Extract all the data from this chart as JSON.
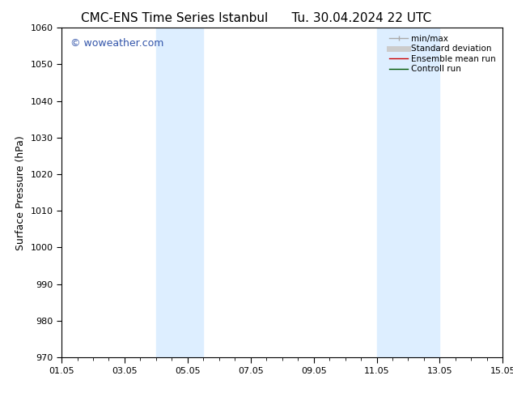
{
  "title_left": "CMC-ENS Time Series Istanbul",
  "title_right": "Tu. 30.04.2024 22 UTC",
  "ylabel": "Surface Pressure (hPa)",
  "ylim": [
    970,
    1060
  ],
  "yticks": [
    970,
    980,
    990,
    1000,
    1010,
    1020,
    1030,
    1040,
    1050,
    1060
  ],
  "xstart_day": 1,
  "xend_day": 15,
  "xtick_days": [
    1,
    3,
    5,
    7,
    9,
    11,
    13,
    15
  ],
  "xtick_labels": [
    "01.05",
    "03.05",
    "05.05",
    "07.05",
    "09.05",
    "11.05",
    "13.05",
    "15.05"
  ],
  "shaded_bands": [
    {
      "x_start": 4,
      "x_end": 5.5
    },
    {
      "x_start": 11,
      "x_end": 13
    }
  ],
  "shaded_color": "#ddeeff",
  "watermark": "© woweather.com",
  "watermark_color": "#3355aa",
  "legend_entries": [
    {
      "label": "min/max",
      "color": "#aaaaaa",
      "lw": 1.0
    },
    {
      "label": "Standard deviation",
      "color": "#cccccc",
      "lw": 5
    },
    {
      "label": "Ensemble mean run",
      "color": "#cc0000",
      "lw": 1.0
    },
    {
      "label": "Controll run",
      "color": "#005500",
      "lw": 1.0
    }
  ],
  "background_color": "#ffffff",
  "title_fontsize": 11,
  "axis_label_fontsize": 9,
  "tick_fontsize": 8,
  "legend_fontsize": 7.5,
  "watermark_fontsize": 9
}
